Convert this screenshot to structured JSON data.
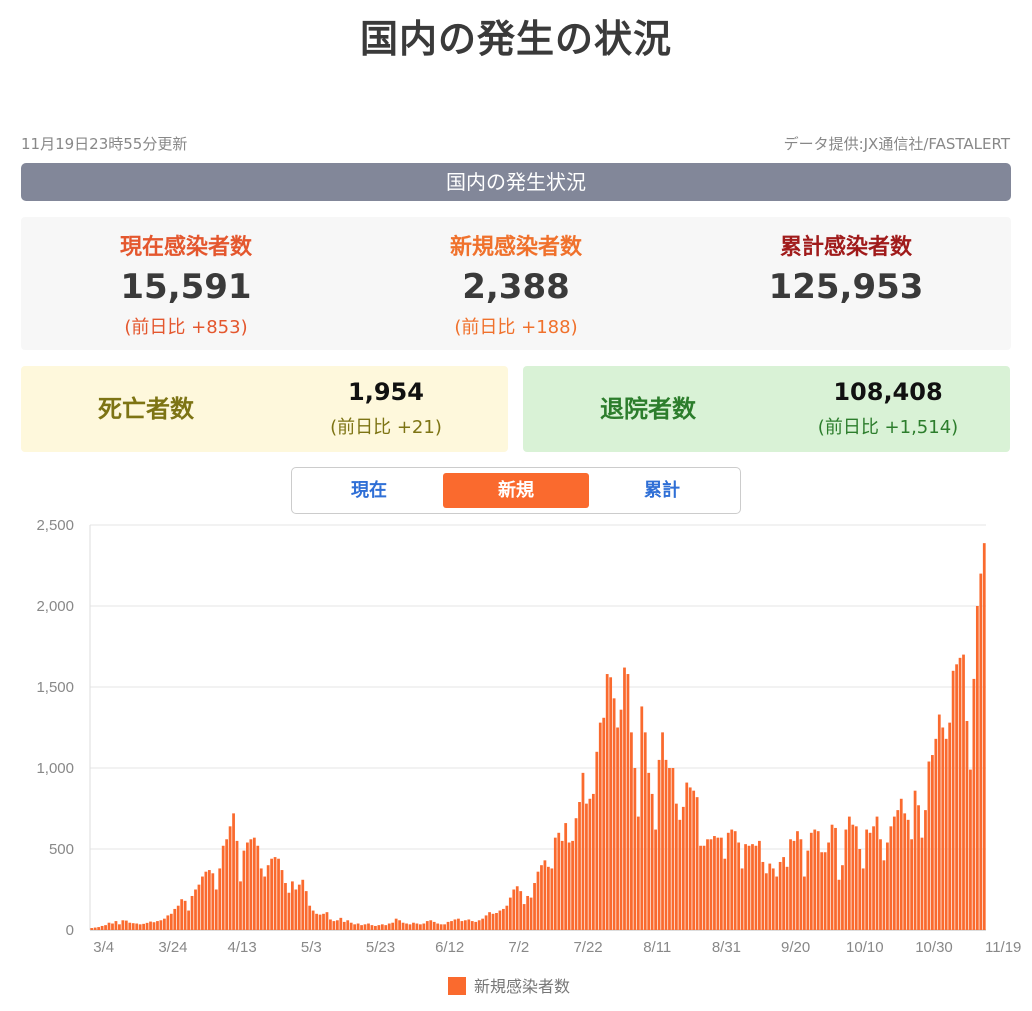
{
  "page": {
    "title": "国内の発生の状況",
    "updated": "11月19日23時55分更新",
    "source": "データ提供:JX通信社/FASTALERT",
    "banner": "国内の発生状況"
  },
  "stats": {
    "current": {
      "label": "現在感染者数",
      "value": "15,591",
      "diff": "(前日比 +853)"
    },
    "new": {
      "label": "新規感染者数",
      "value": "2,388",
      "diff": "(前日比 +188)"
    },
    "total": {
      "label": "累計感染者数",
      "value": "125,953"
    }
  },
  "deaths": {
    "label": "死亡者数",
    "value": "1,954",
    "diff": "(前日比 +21)"
  },
  "recovered": {
    "label": "退院者数",
    "value": "108,408",
    "diff": "(前日比 +1,514)"
  },
  "tabs": {
    "current": "現在",
    "new": "新規",
    "total": "累計",
    "active": "新規"
  },
  "colors": {
    "bar": "#fa6a2e",
    "grid": "#e6e6e6",
    "axis_text": "#888888"
  },
  "chart_data": {
    "type": "bar",
    "series_name": "新規感染者数",
    "start_date": "3/4",
    "end_date": "11/19",
    "ylim": [
      0,
      2500
    ],
    "yticks": [
      0,
      500,
      1000,
      1500,
      2000,
      2500
    ],
    "ytick_labels": [
      "0",
      "500",
      "1,000",
      "1,500",
      "2,000",
      "2,500"
    ],
    "xtick_labels": [
      "3/4",
      "3/24",
      "4/13",
      "5/3",
      "5/23",
      "6/12",
      "7/2",
      "7/22",
      "8/11",
      "8/31",
      "9/20",
      "10/10",
      "10/30",
      "11/19"
    ],
    "legend": "bottom",
    "grid": true,
    "values": [
      12,
      15,
      18,
      25,
      30,
      45,
      40,
      55,
      35,
      60,
      58,
      45,
      42,
      40,
      35,
      38,
      44,
      52,
      48,
      55,
      60,
      70,
      90,
      100,
      130,
      150,
      190,
      180,
      120,
      210,
      250,
      280,
      330,
      360,
      370,
      350,
      250,
      380,
      520,
      560,
      640,
      720,
      550,
      300,
      490,
      540,
      560,
      570,
      520,
      380,
      330,
      400,
      440,
      450,
      440,
      370,
      290,
      230,
      300,
      250,
      280,
      310,
      240,
      150,
      120,
      100,
      95,
      100,
      110,
      65,
      55,
      60,
      75,
      50,
      60,
      45,
      35,
      40,
      30,
      35,
      40,
      30,
      25,
      30,
      35,
      30,
      40,
      45,
      70,
      60,
      45,
      40,
      35,
      45,
      40,
      35,
      40,
      55,
      60,
      50,
      40,
      35,
      35,
      50,
      55,
      65,
      70,
      55,
      60,
      65,
      55,
      50,
      60,
      70,
      90,
      110,
      100,
      105,
      120,
      130,
      150,
      200,
      250,
      270,
      240,
      160,
      210,
      200,
      290,
      360,
      400,
      430,
      390,
      380,
      570,
      600,
      550,
      660,
      540,
      550,
      690,
      790,
      970,
      780,
      810,
      840,
      1100,
      1280,
      1310,
      1580,
      1560,
      1430,
      1250,
      1360,
      1620,
      1580,
      1220,
      1000,
      700,
      1380,
      1220,
      970,
      840,
      620,
      1050,
      1220,
      1050,
      1000,
      1000,
      780,
      680,
      760,
      910,
      880,
      860,
      820,
      520,
      520,
      560,
      560,
      580,
      570,
      570,
      440,
      600,
      620,
      610,
      540,
      380,
      530,
      520,
      530,
      520,
      550,
      420,
      350,
      410,
      380,
      330,
      420,
      450,
      390,
      560,
      550,
      610,
      560,
      330,
      490,
      600,
      620,
      610,
      480,
      480,
      540,
      650,
      630,
      310,
      400,
      620,
      700,
      650,
      640,
      500,
      380,
      620,
      600,
      640,
      700,
      560,
      430,
      540,
      640,
      700,
      740,
      810,
      720,
      680,
      560,
      860,
      770,
      570,
      740,
      1040,
      1080,
      1180,
      1330,
      1250,
      1180,
      1280,
      1600,
      1640,
      1680,
      1700,
      1290,
      990,
      1550,
      2000,
      2200,
      2388
    ]
  }
}
